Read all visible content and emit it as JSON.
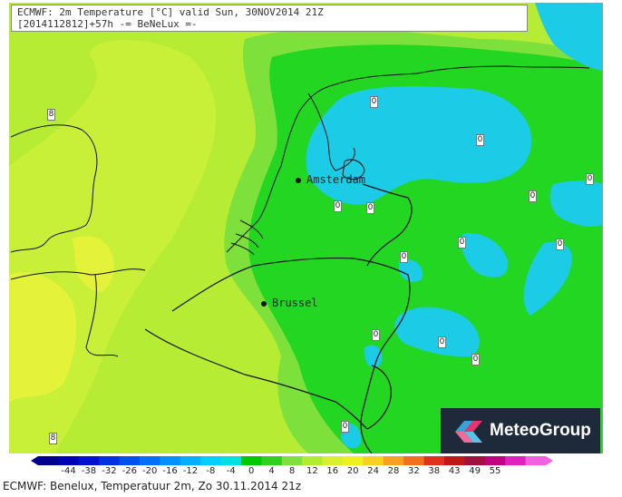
{
  "header": {
    "line1": "ECMWF: 2m Temperature [°C] valid Sun, 30NOV2014 21Z",
    "line2": "[2014112812]+57h -= BeNeLux =-"
  },
  "cities": [
    {
      "name": "Amsterdam"
    },
    {
      "name": "Brussel"
    }
  ],
  "contour_labels": [
    "8",
    "8",
    "0",
    "0",
    "0",
    "0",
    "0",
    "0",
    "0",
    "0",
    "0",
    "0",
    "0",
    "0",
    "0"
  ],
  "colorbar": {
    "ticks": [
      "-44",
      "-38",
      "-32",
      "-26",
      "-20",
      "-16",
      "-12",
      "-8",
      "-4",
      "0",
      "4",
      "8",
      "12",
      "16",
      "20",
      "24",
      "28",
      "32",
      "38",
      "43",
      "49",
      "55"
    ],
    "colors": [
      "#000090",
      "#0000b4",
      "#0010d0",
      "#0030e0",
      "#0050f0",
      "#0070f8",
      "#0090ff",
      "#00b0ff",
      "#00cfff",
      "#00e0e0",
      "#00c800",
      "#30d020",
      "#7ee03a",
      "#b0ec30",
      "#d8f030",
      "#f0f020",
      "#f8d020",
      "#f8a020",
      "#f07020",
      "#e03020",
      "#c01818",
      "#a01040",
      "#c00080",
      "#e020c0",
      "#f060e0"
    ]
  },
  "logo": {
    "text": "MeteoGroup"
  },
  "footer": "ECMWF: Benelux, Temperatuur 2m, Zo 30.11.2014 21z",
  "colors": {
    "cold_cyan": "#1ccbe6",
    "green": "#22d622",
    "light_green": "#7ee03a",
    "yellow_green": "#b6ec34",
    "yellow": "#e4f23a",
    "logo_bg": "#1e2a3a"
  }
}
